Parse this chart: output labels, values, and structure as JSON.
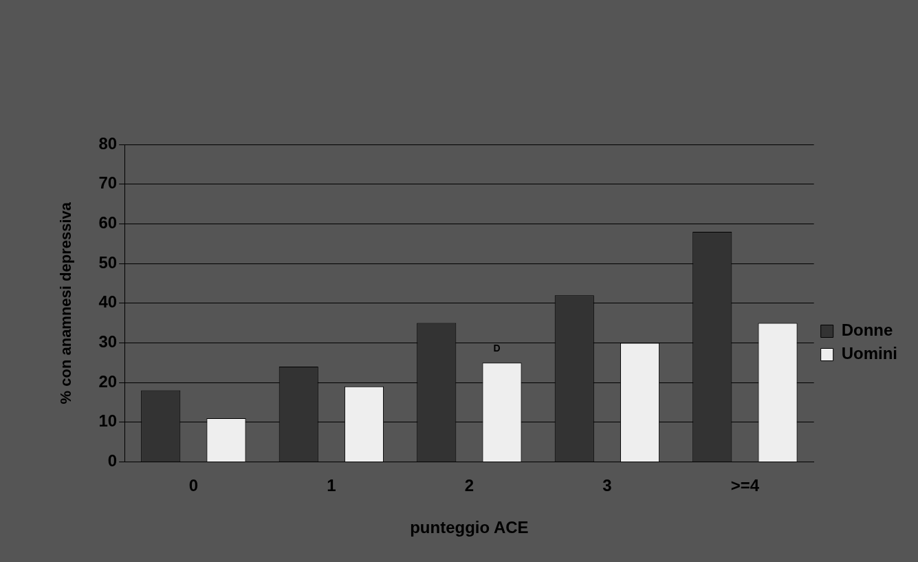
{
  "chart_data": {
    "type": "bar",
    "xlabel": "punteggio ACE",
    "ylabel": "% con anamnesi depressiva",
    "categories": [
      "0",
      "1",
      "2",
      "3",
      ">=4"
    ],
    "series": [
      {
        "name": "Donne",
        "color": "#333333",
        "values": [
          18,
          24,
          35,
          42,
          58
        ]
      },
      {
        "name": "Uomini",
        "color": "#eeeeee",
        "values": [
          11,
          19,
          25,
          30,
          35
        ]
      }
    ],
    "ylim": [
      0,
      80
    ],
    "yticks": [
      0,
      10,
      20,
      30,
      40,
      50,
      60,
      70,
      80
    ],
    "grid": "y",
    "legend": "right",
    "annotations": [
      "D"
    ]
  }
}
